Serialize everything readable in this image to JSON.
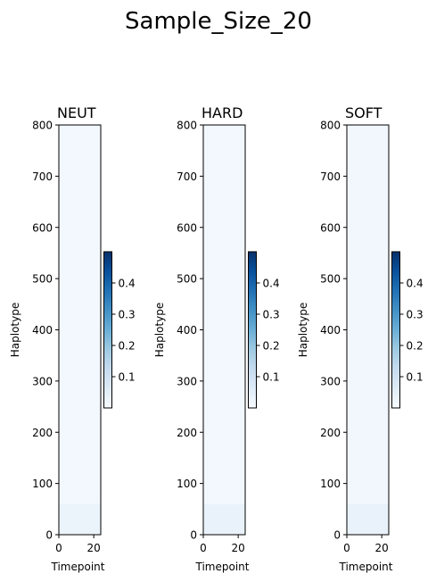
{
  "figure": {
    "title": "Sample_Size_20"
  },
  "chart_data": [
    {
      "type": "heatmap",
      "title": "NEUT",
      "xlabel": "Timepoint",
      "ylabel": "Haplotype",
      "xlim": [
        0,
        24
      ],
      "ylim": [
        0,
        800
      ],
      "x_ticks": [
        0,
        20
      ],
      "y_ticks": [
        0,
        100,
        200,
        300,
        400,
        500,
        600,
        700,
        800
      ],
      "colormap": "Blues",
      "color_range": [
        0,
        0.5
      ],
      "colorbar_ticks": [
        0.1,
        0.2,
        0.3,
        0.4
      ],
      "bands": [
        {
          "y_from": 0,
          "y_to": 60,
          "value": 0.03
        },
        {
          "y_from": 60,
          "y_to": 800,
          "value": 0.012
        }
      ]
    },
    {
      "type": "heatmap",
      "title": "HARD",
      "xlabel": "Timepoint",
      "ylabel": "Haplotype",
      "xlim": [
        0,
        24
      ],
      "ylim": [
        0,
        800
      ],
      "x_ticks": [
        0,
        20
      ],
      "y_ticks": [
        0,
        100,
        200,
        300,
        400,
        500,
        600,
        700,
        800
      ],
      "colormap": "Blues",
      "color_range": [
        0,
        0.5
      ],
      "colorbar_ticks": [
        0.1,
        0.2,
        0.3,
        0.4
      ],
      "bands": [
        {
          "y_from": 0,
          "y_to": 60,
          "value": 0.035
        },
        {
          "y_from": 60,
          "y_to": 800,
          "value": 0.012
        }
      ]
    },
    {
      "type": "heatmap",
      "title": "SOFT",
      "xlabel": "Timepoint",
      "ylabel": "Haplotype",
      "xlim": [
        0,
        24
      ],
      "ylim": [
        0,
        800
      ],
      "x_ticks": [
        0,
        20
      ],
      "y_ticks": [
        0,
        100,
        200,
        300,
        400,
        500,
        600,
        700,
        800
      ],
      "colormap": "Blues",
      "color_range": [
        0,
        0.5
      ],
      "colorbar_ticks": [
        0.1,
        0.2,
        0.3,
        0.4
      ],
      "bands": [
        {
          "y_from": 0,
          "y_to": 60,
          "value": 0.035
        },
        {
          "y_from": 60,
          "y_to": 800,
          "value": 0.015
        }
      ]
    }
  ]
}
